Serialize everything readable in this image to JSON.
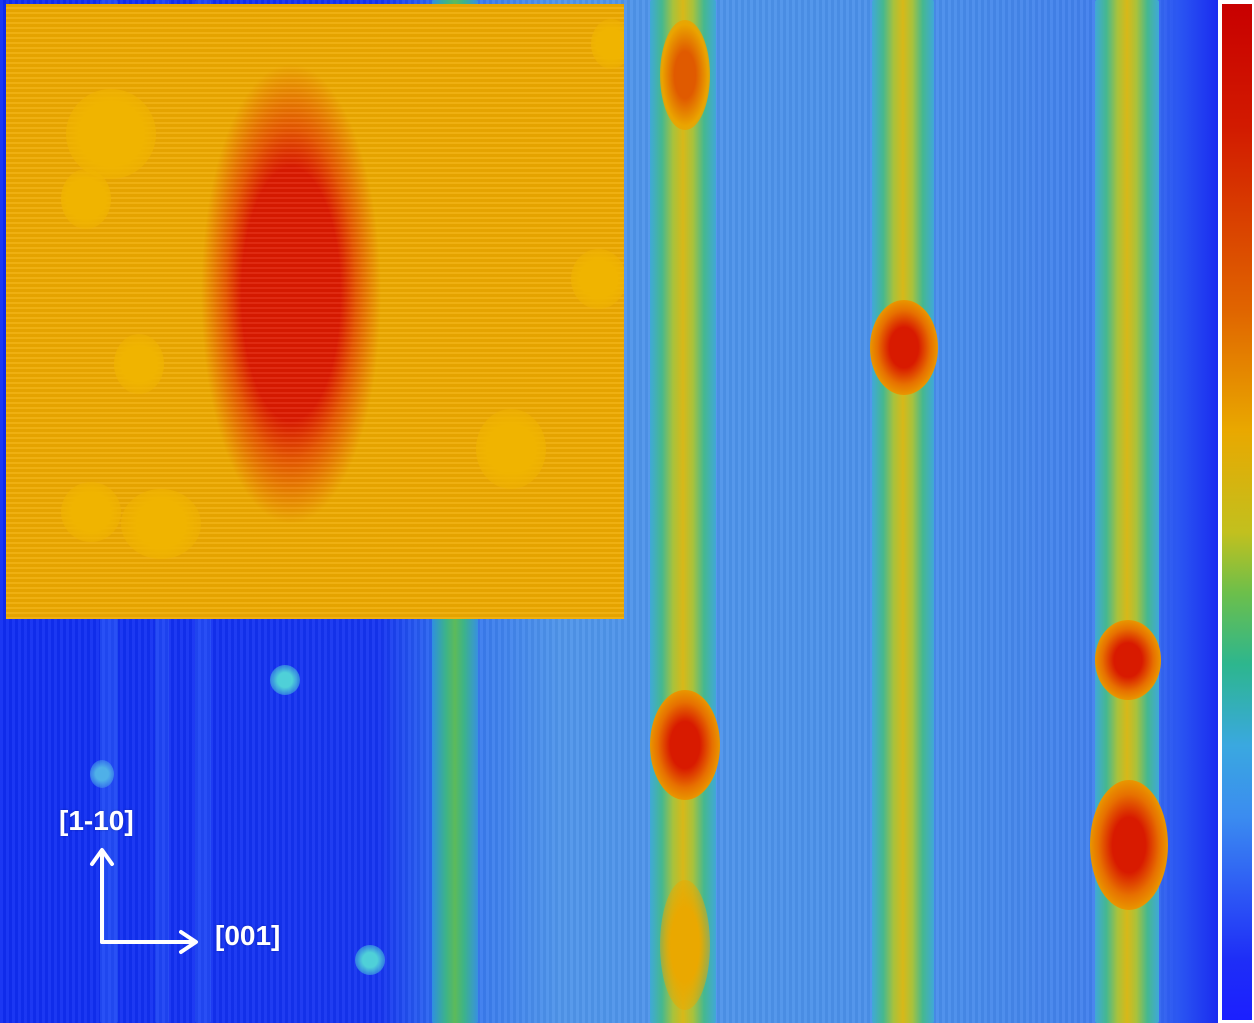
{
  "axes": {
    "label_y": "[1-10]",
    "label_x": "[001]"
  },
  "colormap": {
    "name": "jet",
    "stops": [
      "#c80000",
      "#e06400",
      "#e9a800",
      "#6cbf4b",
      "#2db68e",
      "#3aa8e0",
      "#2c55f5",
      "#1b1fff"
    ]
  }
}
